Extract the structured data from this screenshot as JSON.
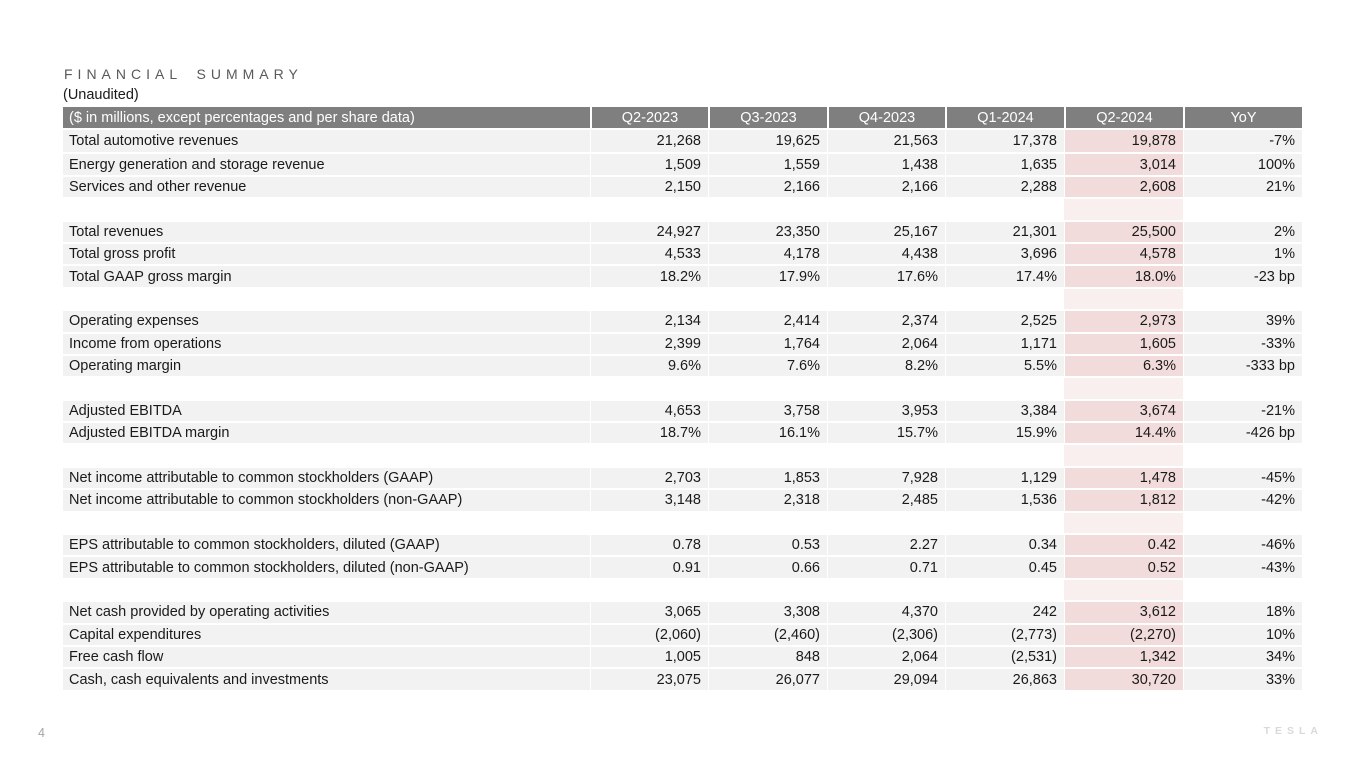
{
  "title": "FINANCIAL SUMMARY",
  "subtitle": "(Unaudited)",
  "table": {
    "header_label": "($ in millions, except percentages and per share data)",
    "columns": [
      "Q2-2023",
      "Q3-2023",
      "Q4-2023",
      "Q1-2024",
      "Q2-2024",
      "YoY"
    ],
    "highlight_column": "Q2-2024",
    "groups": [
      {
        "rows": [
          {
            "label": "Total automotive revenues",
            "values": [
              "21,268",
              "19,625",
              "21,563",
              "17,378",
              "19,878",
              "-7%"
            ]
          },
          {
            "label": "Energy generation and storage revenue",
            "values": [
              "1,509",
              "1,559",
              "1,438",
              "1,635",
              "3,014",
              "100%"
            ]
          },
          {
            "label": "Services and other revenue",
            "values": [
              "2,150",
              "2,166",
              "2,166",
              "2,288",
              "2,608",
              "21%"
            ]
          }
        ]
      },
      {
        "rows": [
          {
            "label": "Total revenues",
            "values": [
              "24,927",
              "23,350",
              "25,167",
              "21,301",
              "25,500",
              "2%"
            ]
          },
          {
            "label": "Total gross profit",
            "values": [
              "4,533",
              "4,178",
              "4,438",
              "3,696",
              "4,578",
              "1%"
            ]
          },
          {
            "label": "Total GAAP gross margin",
            "values": [
              "18.2%",
              "17.9%",
              "17.6%",
              "17.4%",
              "18.0%",
              "-23 bp"
            ]
          }
        ]
      },
      {
        "rows": [
          {
            "label": "Operating expenses",
            "values": [
              "2,134",
              "2,414",
              "2,374",
              "2,525",
              "2,973",
              "39%"
            ]
          },
          {
            "label": "Income from operations",
            "values": [
              "2,399",
              "1,764",
              "2,064",
              "1,171",
              "1,605",
              "-33%"
            ]
          },
          {
            "label": "Operating margin",
            "values": [
              "9.6%",
              "7.6%",
              "8.2%",
              "5.5%",
              "6.3%",
              "-333 bp"
            ]
          }
        ]
      },
      {
        "rows": [
          {
            "label": "Adjusted EBITDA",
            "values": [
              "4,653",
              "3,758",
              "3,953",
              "3,384",
              "3,674",
              "-21%"
            ]
          },
          {
            "label": "Adjusted EBITDA margin",
            "values": [
              "18.7%",
              "16.1%",
              "15.7%",
              "15.9%",
              "14.4%",
              "-426 bp"
            ]
          }
        ]
      },
      {
        "rows": [
          {
            "label": "Net income attributable to common stockholders (GAAP)",
            "values": [
              "2,703",
              "1,853",
              "7,928",
              "1,129",
              "1,478",
              "-45%"
            ]
          },
          {
            "label": "Net income attributable to common stockholders (non-GAAP)",
            "values": [
              "3,148",
              "2,318",
              "2,485",
              "1,536",
              "1,812",
              "-42%"
            ]
          }
        ]
      },
      {
        "rows": [
          {
            "label": "EPS attributable to common stockholders, diluted (GAAP)",
            "values": [
              "0.78",
              "0.53",
              "2.27",
              "0.34",
              "0.42",
              "-46%"
            ]
          },
          {
            "label": "EPS attributable to common stockholders, diluted (non-GAAP)",
            "values": [
              "0.91",
              "0.66",
              "0.71",
              "0.45",
              "0.52",
              "-43%"
            ]
          }
        ]
      },
      {
        "rows": [
          {
            "label": "Net cash provided by operating activities",
            "values": [
              "3,065",
              "3,308",
              "4,370",
              "242",
              "3,612",
              "18%"
            ]
          },
          {
            "label": "Capital expenditures",
            "values": [
              "(2,060)",
              "(2,460)",
              "(2,306)",
              "(2,773)",
              "(2,270)",
              "10%"
            ]
          },
          {
            "label": "Free cash flow",
            "values": [
              "1,005",
              "848",
              "2,064",
              "(2,531)",
              "1,342",
              "34%"
            ]
          },
          {
            "label": "Cash, cash equivalents and investments",
            "values": [
              "23,075",
              "26,077",
              "29,094",
              "26,863",
              "30,720",
              "33%"
            ]
          }
        ]
      }
    ]
  },
  "colors": {
    "header_bg": "#7f7f7f",
    "row_bg": "#f2f2f2",
    "highlight_bg": "#f2dcdb",
    "highlight_spacer_bg": "#f9efee",
    "title_color": "#595959",
    "logo_color": "#d9d9d9"
  },
  "footer": {
    "page_number": "4",
    "logo_text": "TESLA"
  }
}
